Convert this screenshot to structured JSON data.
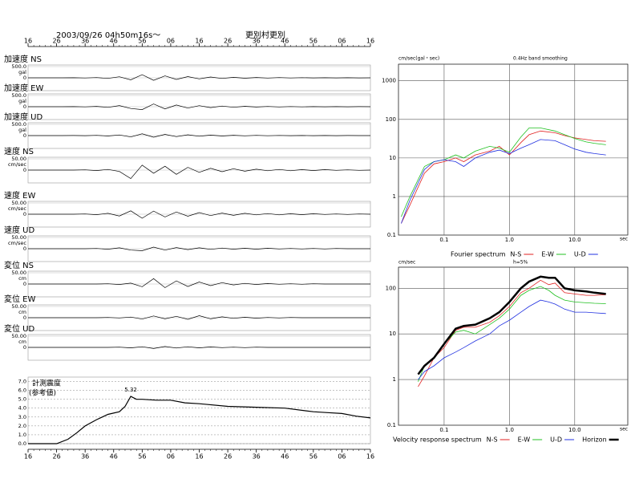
{
  "chart_data": [
    {
      "type": "waveforms",
      "title": "2003/09/26  04h50m16s～",
      "subtitle": "更別村更別",
      "xlim": [
        0,
        120
      ],
      "xticks": [
        {
          "value": 0,
          "label": "16"
        },
        {
          "value": 10,
          "label": "26"
        },
        {
          "value": 20,
          "label": "36"
        },
        {
          "value": 30,
          "label": "46"
        },
        {
          "value": 40,
          "label": "56"
        },
        {
          "value": 50,
          "label": "06"
        },
        {
          "value": 60,
          "label": "16"
        },
        {
          "value": 70,
          "label": "26"
        },
        {
          "value": 80,
          "label": "36"
        },
        {
          "value": 90,
          "label": "46"
        },
        {
          "value": 100,
          "label": "56"
        },
        {
          "value": 110,
          "label": "06"
        },
        {
          "value": 120,
          "label": "16"
        }
      ],
      "x": [
        0,
        4,
        8,
        12,
        16,
        20,
        24,
        28,
        32,
        36,
        40,
        44,
        48,
        52,
        56,
        60,
        64,
        68,
        72,
        76,
        80,
        84,
        88,
        92,
        96,
        100,
        104,
        108,
        112,
        116,
        120
      ],
      "traces": [
        {
          "name": "加速度 NS",
          "unit": "gal",
          "ylim": [
            -500,
            500
          ],
          "yticks": [
            {
              "value": 500,
              "label": "500.0"
            },
            0
          ],
          "values": [
            0,
            0,
            0,
            0,
            3,
            -6,
            12,
            -25,
            45,
            -90,
            140,
            -110,
            85,
            -70,
            55,
            -45,
            35,
            -28,
            22,
            -18,
            14,
            -11,
            9,
            -7,
            6,
            -5,
            4,
            -3,
            2,
            -2,
            1
          ]
        },
        {
          "name": "加速度 EW",
          "unit": "gal",
          "ylim": [
            -500,
            500
          ],
          "yticks": [
            {
              "value": 500,
              "label": "500.0"
            },
            0
          ],
          "values": [
            0,
            0,
            0,
            0,
            4,
            -8,
            15,
            -30,
            50,
            -80,
            -130,
            120,
            -95,
            75,
            -60,
            48,
            -38,
            30,
            -24,
            19,
            -15,
            12,
            -9,
            7,
            -6,
            5,
            -4,
            3,
            -2,
            2,
            -1
          ]
        },
        {
          "name": "加速度 UD",
          "unit": "gal",
          "ylim": [
            -500,
            500
          ],
          "yticks": [
            {
              "value": 500,
              "label": "500.0"
            },
            0
          ],
          "values": [
            0,
            0,
            0,
            0,
            2,
            -5,
            9,
            -18,
            30,
            -60,
            80,
            -70,
            55,
            -45,
            35,
            -28,
            22,
            -18,
            14,
            -11,
            9,
            -7,
            6,
            -5,
            4,
            -3,
            3,
            -2,
            2,
            -1,
            1
          ]
        },
        {
          "name": "速度 NS",
          "unit": "cm/sec",
          "ylim": [
            -50,
            50
          ],
          "yticks": [
            {
              "value": 50,
              "label": "50.00"
            },
            0
          ],
          "values": [
            0,
            0,
            0,
            0,
            0,
            1,
            -2,
            3,
            -6,
            -38,
            22,
            -14,
            17,
            -19,
            12,
            -10,
            8,
            -7,
            6,
            -5,
            4,
            -3,
            3,
            -3,
            2,
            -2,
            2,
            -1,
            1,
            -1,
            0
          ]
        },
        {
          "name": "速度 EW",
          "unit": "cm/sec",
          "ylim": [
            -50,
            50
          ],
          "yticks": [
            {
              "value": 50,
              "label": "50.00"
            },
            0
          ],
          "values": [
            0,
            0,
            0,
            0,
            0,
            1,
            -2,
            4,
            -8,
            15,
            -18,
            14,
            -12,
            10,
            -9,
            7,
            -6,
            5,
            -5,
            4,
            -3,
            3,
            -3,
            2,
            -2,
            2,
            -1,
            1,
            -1,
            1,
            0
          ]
        },
        {
          "name": "速度 UD",
          "unit": "cm/sec",
          "ylim": [
            -50,
            50
          ],
          "yticks": [
            {
              "value": 50,
              "label": "50.00"
            },
            0
          ],
          "values": [
            0,
            0,
            0,
            0,
            0,
            0,
            1,
            -2,
            4,
            -6,
            -9,
            7,
            -6,
            5,
            -4,
            4,
            -3,
            3,
            -2,
            2,
            -2,
            2,
            -1,
            1,
            -1,
            1,
            -1,
            1,
            0,
            0,
            0
          ]
        },
        {
          "name": "変位 NS",
          "unit": "cm",
          "ylim": [
            -50,
            50
          ],
          "yticks": [
            {
              "value": 50,
              "label": "50.00"
            },
            0
          ],
          "values": [
            0,
            0,
            0,
            0,
            0,
            0,
            0,
            1,
            -2,
            4,
            -12,
            24,
            -16,
            14,
            -11,
            9,
            -7,
            6,
            -4,
            3,
            -2,
            2,
            -1,
            1,
            -1,
            1,
            0,
            0,
            0,
            0,
            0
          ]
        },
        {
          "name": "変位 EW",
          "unit": "cm",
          "ylim": [
            -50,
            50
          ],
          "yticks": [
            {
              "value": 50,
              "label": "50.00"
            },
            0
          ],
          "values": [
            0,
            0,
            0,
            0,
            0,
            0,
            0,
            1,
            -1,
            3,
            -6,
            8,
            -5,
            6,
            -7,
            9,
            -5,
            4,
            -3,
            2,
            -2,
            1,
            -1,
            1,
            0,
            0,
            0,
            0,
            0,
            0,
            0
          ]
        },
        {
          "name": "変位 UD",
          "unit": "cm",
          "ylim": [
            -50,
            50
          ],
          "yticks": [
            {
              "value": 50,
              "label": "50.00"
            },
            0
          ],
          "values": [
            0,
            0,
            0,
            0,
            0,
            0,
            0,
            0,
            1,
            -2,
            3,
            -5,
            4,
            -3,
            3,
            -2,
            2,
            -1,
            1,
            -1,
            1,
            0,
            0,
            0,
            0,
            0,
            0,
            0,
            0,
            0,
            0
          ]
        }
      ]
    },
    {
      "type": "line",
      "title": "計測震度",
      "subtitle": "(参考値)",
      "xlim": [
        0,
        120
      ],
      "ylim": [
        0,
        7.5
      ],
      "yticks": [
        {
          "value": 0,
          "label": "0.0"
        },
        {
          "value": 1,
          "label": "1.0"
        },
        {
          "value": 2,
          "label": "2.0"
        },
        {
          "value": 3,
          "label": "3.0"
        },
        {
          "value": 4,
          "label": "4.0"
        },
        {
          "value": 5,
          "label": "5.0"
        },
        {
          "value": 6,
          "label": "6.0"
        },
        {
          "value": 7,
          "label": "7.0"
        }
      ],
      "x": [
        0,
        10,
        14,
        17,
        20,
        24,
        28,
        32,
        34,
        36,
        38,
        40,
        45,
        50,
        55,
        60,
        70,
        80,
        90,
        100,
        105,
        110,
        115,
        120
      ],
      "values": [
        0,
        0,
        0.5,
        1.2,
        2,
        2.7,
        3.3,
        3.6,
        4.2,
        5.32,
        5.0,
        5.0,
        4.9,
        4.9,
        4.6,
        4.5,
        4.2,
        4.1,
        4.0,
        3.6,
        3.5,
        3.4,
        3.1,
        2.9
      ],
      "grid": true
    },
    {
      "type": "loglog",
      "title": "Fourier spectrum",
      "ylabel": "cm/sec(gal・sec)",
      "annotation": "0.4Hz band smoothing",
      "xlabel": "sec",
      "xlim": [
        0.02,
        65
      ],
      "ylim": [
        0.1,
        2700
      ],
      "xticks": [
        0.1,
        {
          "value": 1,
          "label": "1.0"
        },
        {
          "value": 10,
          "label": "10.0"
        }
      ],
      "yticks": [
        0.1,
        1,
        10,
        100,
        1000
      ],
      "x": [
        0.022,
        0.03,
        0.05,
        0.07,
        0.1,
        0.15,
        0.2,
        0.3,
        0.5,
        0.7,
        1,
        1.5,
        2,
        3,
        5,
        7,
        10,
        15,
        20,
        30
      ],
      "series": [
        {
          "name": "N-S",
          "color": "#e02020",
          "values": [
            0.2,
            0.6,
            4,
            7,
            8,
            10,
            8,
            12,
            15,
            20,
            12,
            25,
            40,
            50,
            45,
            38,
            33,
            30,
            28,
            27
          ]
        },
        {
          "name": "E-W",
          "color": "#20c020",
          "values": [
            0.3,
            1,
            6,
            8,
            9,
            12,
            10,
            15,
            20,
            18,
            14,
            35,
            60,
            60,
            50,
            40,
            32,
            26,
            24,
            22
          ]
        },
        {
          "name": "U-D",
          "color": "#2030e0",
          "values": [
            0.2,
            0.8,
            5,
            8,
            9,
            8,
            6,
            10,
            14,
            16,
            13,
            18,
            22,
            30,
            28,
            22,
            17,
            14,
            13,
            12
          ]
        }
      ],
      "grid": true
    },
    {
      "type": "loglog",
      "title": "Velocity response spectrum",
      "ylabel": "cm/sec",
      "annotation": "h=5%",
      "xlabel": "sec",
      "xlim": [
        0.02,
        65
      ],
      "ylim": [
        0.1,
        290
      ],
      "xticks": [
        0.1,
        {
          "value": 1,
          "label": "1.0"
        },
        {
          "value": 10,
          "label": "10.0"
        }
      ],
      "yticks": [
        0.1,
        1,
        10,
        100
      ],
      "x": [
        0.04,
        0.05,
        0.07,
        0.1,
        0.15,
        0.2,
        0.3,
        0.5,
        0.7,
        1,
        1.5,
        2,
        3,
        4,
        5,
        7,
        10,
        15,
        20,
        30
      ],
      "series": [
        {
          "name": "N-S",
          "color": "#e02020",
          "values": [
            0.7,
            1.2,
            3,
            5,
            12,
            14,
            14,
            18,
            25,
            40,
            80,
            100,
            150,
            120,
            130,
            80,
            75,
            70,
            70,
            72
          ]
        },
        {
          "name": "E-W",
          "color": "#20c020",
          "values": [
            0.9,
            2,
            3,
            6,
            11,
            12,
            10,
            16,
            22,
            35,
            70,
            90,
            110,
            90,
            70,
            55,
            50,
            48,
            47,
            46
          ]
        },
        {
          "name": "U-D",
          "color": "#2030e0",
          "values": [
            1,
            1.5,
            2,
            3,
            4,
            5,
            7,
            10,
            15,
            20,
            30,
            40,
            55,
            50,
            45,
            35,
            30,
            30,
            29,
            28
          ]
        },
        {
          "name": "Horizon",
          "color": "#000000",
          "width": 2.5,
          "values": [
            1.3,
            2,
            3,
            6,
            13,
            15,
            16,
            22,
            30,
            50,
            100,
            140,
            180,
            170,
            170,
            100,
            90,
            85,
            80,
            75
          ]
        }
      ],
      "grid": true
    }
  ]
}
